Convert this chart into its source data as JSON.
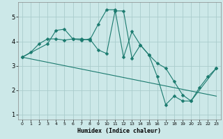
{
  "title": "",
  "xlabel": "Humidex (Indice chaleur)",
  "bg_color": "#cce8e8",
  "grid_color": "#aacccc",
  "line_color": "#1a7a6e",
  "xlim": [
    -0.5,
    23.5
  ],
  "ylim": [
    0.8,
    5.6
  ],
  "yticks": [
    1,
    2,
    3,
    4,
    5
  ],
  "xticks": [
    0,
    1,
    2,
    3,
    4,
    5,
    6,
    7,
    8,
    9,
    10,
    11,
    12,
    13,
    14,
    15,
    16,
    17,
    18,
    19,
    20,
    21,
    22,
    23
  ],
  "line1_x": [
    0,
    1,
    2,
    3,
    4,
    5,
    6,
    7,
    8,
    9,
    10,
    11,
    12,
    13,
    14,
    15,
    16,
    17,
    18,
    19,
    20,
    21,
    22,
    23
  ],
  "line1_y": [
    3.35,
    3.55,
    3.9,
    4.1,
    4.1,
    4.05,
    4.1,
    4.05,
    4.1,
    3.65,
    3.5,
    5.25,
    5.25,
    3.3,
    3.85,
    3.45,
    3.1,
    2.9,
    2.35,
    1.8,
    1.55,
    2.1,
    2.55,
    2.9
  ],
  "line2_x": [
    0,
    3,
    4,
    5,
    6,
    7,
    8,
    9,
    10,
    11,
    12,
    13,
    14,
    15,
    16,
    17,
    18,
    19,
    20,
    23
  ],
  "line2_y": [
    3.35,
    3.9,
    4.45,
    4.5,
    4.1,
    4.1,
    4.05,
    4.7,
    5.3,
    5.3,
    3.35,
    4.4,
    3.85,
    3.45,
    2.55,
    1.4,
    1.75,
    1.55,
    1.55,
    2.9
  ],
  "line3_x": [
    0,
    23
  ],
  "line3_y": [
    3.35,
    1.75
  ]
}
